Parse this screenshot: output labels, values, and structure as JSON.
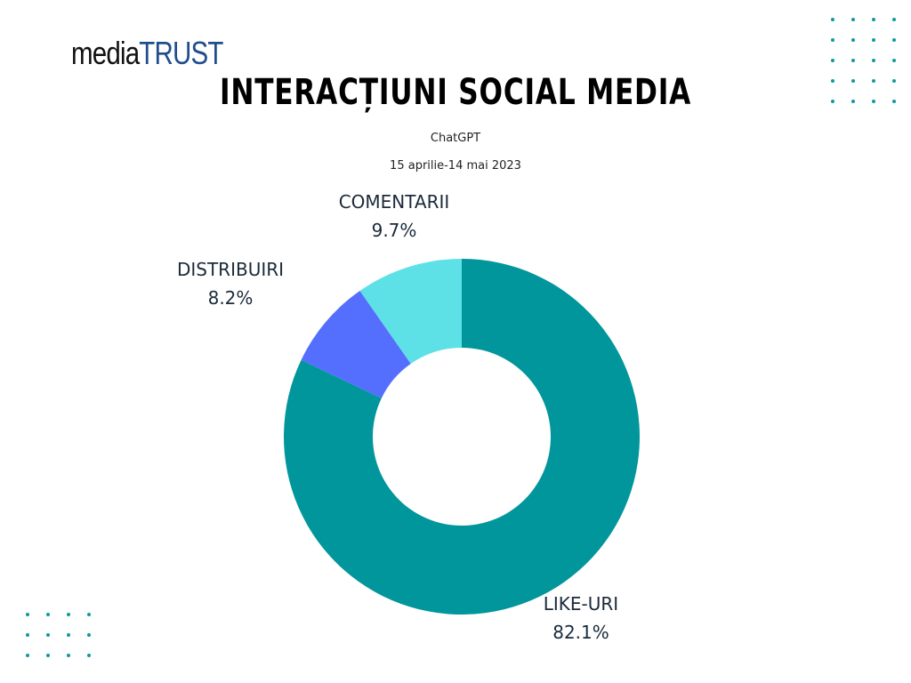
{
  "brand": {
    "logo_part1": "media",
    "logo_part2": "TRUST"
  },
  "header": {
    "title": "INTERACȚIUNI SOCIAL MEDIA",
    "subtitle": "ChatGPT",
    "period": "15 aprilie-14 mai 2023"
  },
  "chart_data": {
    "type": "pie",
    "donut": true,
    "title": "INTERACȚIUNI SOCIAL MEDIA",
    "subtitle": "ChatGPT",
    "legend": "none",
    "slices": [
      {
        "label": "LIKE-URI",
        "value": 82.1,
        "display": "82.1%",
        "color": "#00969b"
      },
      {
        "label": "DISTRIBUIRI",
        "value": 8.2,
        "display": "8.2%",
        "color": "#546ffe"
      },
      {
        "label": "COMENTARII",
        "value": 9.7,
        "display": "9.7%",
        "color": "#5ee1e6"
      }
    ]
  }
}
